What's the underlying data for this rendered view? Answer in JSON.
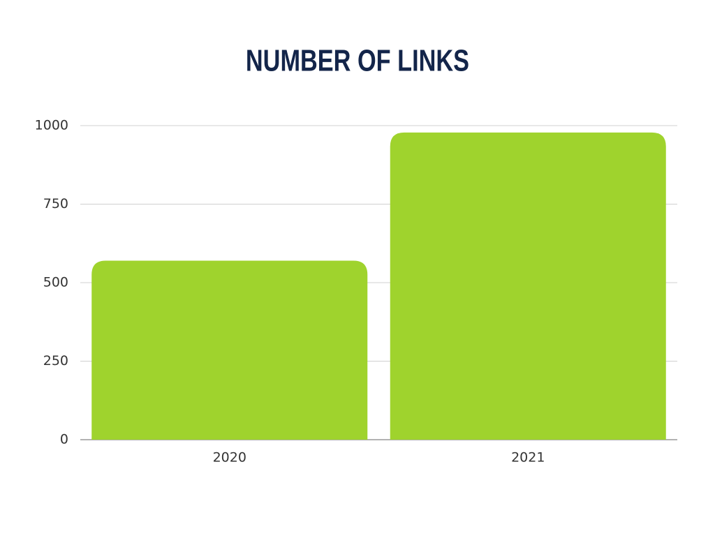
{
  "chart_data": {
    "type": "bar",
    "title": "NUMBER OF LINKS",
    "categories": [
      "2020",
      "2021"
    ],
    "values": [
      570,
      978
    ],
    "color": "#9fd32d",
    "ylim": [
      0,
      1000
    ],
    "yticks": [
      0,
      250,
      500,
      750,
      1000
    ],
    "grid": true
  }
}
